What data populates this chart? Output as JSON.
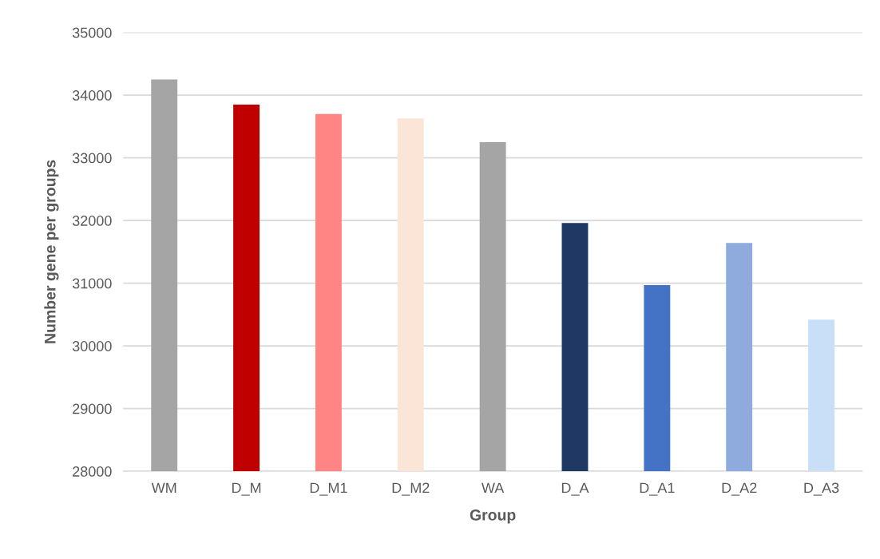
{
  "chart_data": {
    "type": "bar",
    "xlabel": "Group",
    "ylabel": "Number gene per groups",
    "categories": [
      "WM",
      "D_M",
      "D_M1",
      "D_M2",
      "WA",
      "D_A",
      "D_A1",
      "D_A2",
      "D_A3"
    ],
    "values": [
      34250,
      33850,
      33700,
      33630,
      33250,
      31960,
      30970,
      31640,
      30420
    ],
    "colors": [
      "#a5a5a5",
      "#c00000",
      "#ff8585",
      "#fbe5d6",
      "#a5a5a5",
      "#203864",
      "#4472c4",
      "#8faadc",
      "#c9dff8"
    ],
    "ylim": [
      28000,
      35000
    ],
    "yticks": [
      28000,
      29000,
      30000,
      31000,
      32000,
      33000,
      34000,
      35000
    ],
    "grid": "y"
  }
}
